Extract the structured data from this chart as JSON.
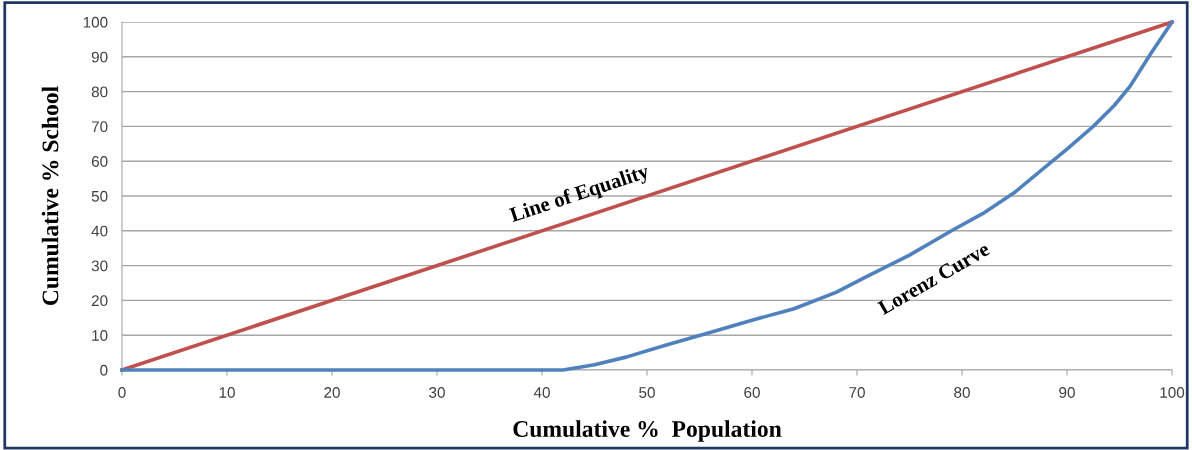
{
  "chart_data": {
    "type": "line",
    "xlabel": "Cumulative %  Population",
    "ylabel": "Cumulative % School",
    "xlim": [
      0,
      100
    ],
    "ylim": [
      0,
      100
    ],
    "xticks": [
      0,
      10,
      20,
      30,
      40,
      50,
      60,
      70,
      80,
      90,
      100
    ],
    "yticks": [
      0,
      10,
      20,
      30,
      40,
      50,
      60,
      70,
      80,
      90,
      100
    ],
    "grid": "y",
    "legend": false,
    "marker": "none",
    "line_style": "solid",
    "series": [
      {
        "name": "Line of Equality",
        "color": "#c0504d",
        "x": [
          0,
          100
        ],
        "values": [
          0,
          100
        ]
      },
      {
        "name": "Lorenz Curve",
        "color": "#4f81bd",
        "x": [
          0,
          42,
          45,
          48,
          52,
          56,
          60,
          64,
          68,
          71,
          75,
          79,
          82,
          85,
          88,
          90,
          92.5,
          94.5,
          96,
          98,
          100
        ],
        "values": [
          0,
          0,
          1.5,
          3.7,
          7.3,
          10.8,
          14.3,
          17.6,
          22.3,
          27,
          33,
          40,
          45,
          51,
          58.5,
          63.5,
          70,
          76,
          81.5,
          91,
          100
        ]
      }
    ]
  }
}
